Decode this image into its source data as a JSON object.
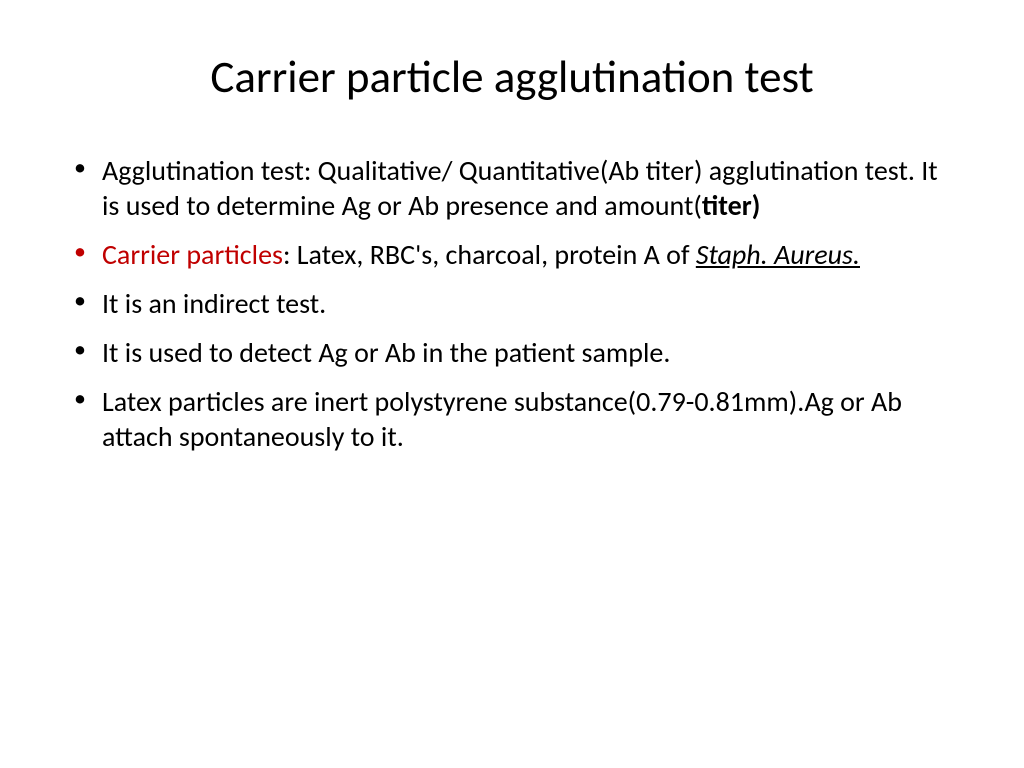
{
  "slide": {
    "title": "Carrier particle agglutination test",
    "bullets": [
      {
        "pre": "Agglutination test: Qualitative/ Quantitative(Ab titer) agglutination test. It is used to determine Ag or Ab presence and amount(",
        "bold": "titer)",
        "post": ""
      },
      {
        "red_lead": "Carrier particles",
        "mid": ": Latex, RBC's, charcoal, protein A of ",
        "ital": "Staph. Aureus."
      },
      {
        "text": "It is an indirect test."
      },
      {
        "text": " It is used to detect Ag or Ab in the patient sample."
      },
      {
        "text": "Latex particles are inert polystyrene substance(0.79-0.81mm).Ag or Ab attach spontaneously to it."
      }
    ],
    "colors": {
      "text": "#000000",
      "accent_red": "#c00000",
      "background": "#ffffff"
    },
    "typography": {
      "title_fontsize": 45,
      "body_fontsize": 28,
      "font_family": "Calibri"
    }
  }
}
